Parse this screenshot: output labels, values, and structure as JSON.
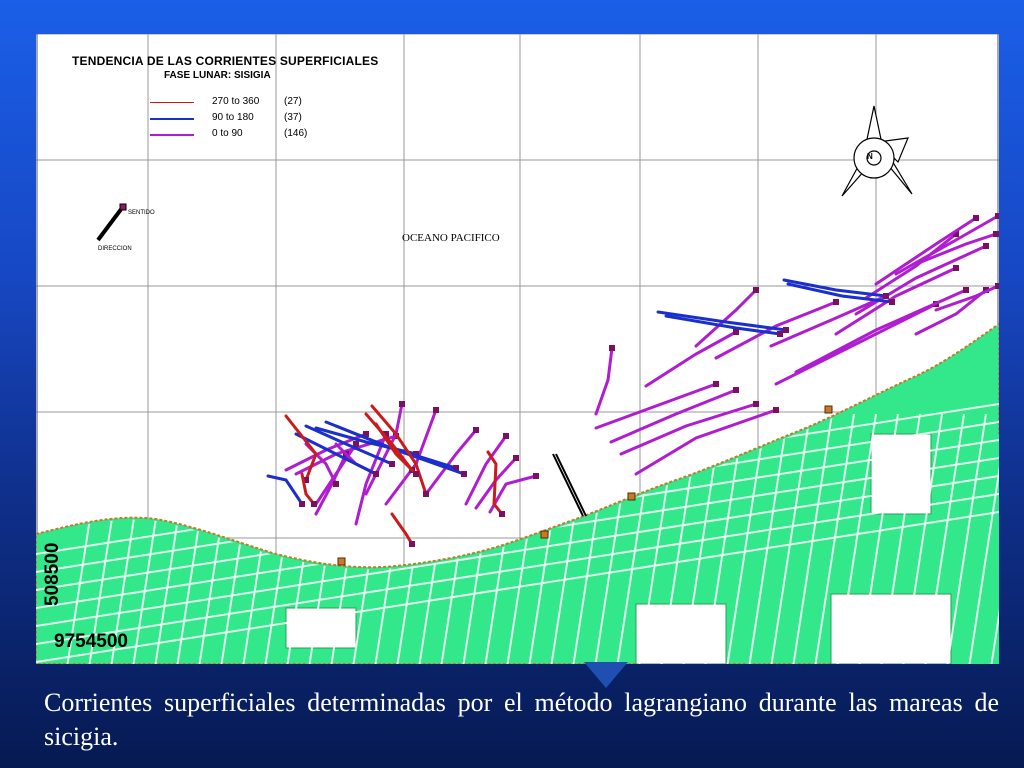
{
  "legend": {
    "title": "TENDENCIA DE LAS CORRIENTES SUPERFICIALES",
    "subtitle": "FASE LUNAR: SISIGIA",
    "items": [
      {
        "range": "270 to 360",
        "count": "(27)",
        "color": "#cc1a1a"
      },
      {
        "range": "90 to 180",
        "count": "(37)",
        "color": "#1a2fcc"
      },
      {
        "range": "0 to  90",
        "count": "(146)",
        "color": "#b01ccf"
      }
    ]
  },
  "direction_key": {
    "sentido_label": "SENTIDO",
    "direccion_label": "DIRECCION"
  },
  "ocean_label": "OCEANO PACIFICO",
  "compass": {
    "label": "N",
    "icon": "north-arrow-icon"
  },
  "coordinates": {
    "easting": "508500",
    "northing": "9754500"
  },
  "colors": {
    "land": "#33e88a",
    "coast": "#c47a2a",
    "grid": "#9a9a9a",
    "background_top": "#1a5fe8",
    "background_bottom": "#061a52",
    "caption_text": "#ffffff"
  },
  "caption": "Corrientes superficiales determinadas por el método lagrangiano durante las mareas de sicigia."
}
